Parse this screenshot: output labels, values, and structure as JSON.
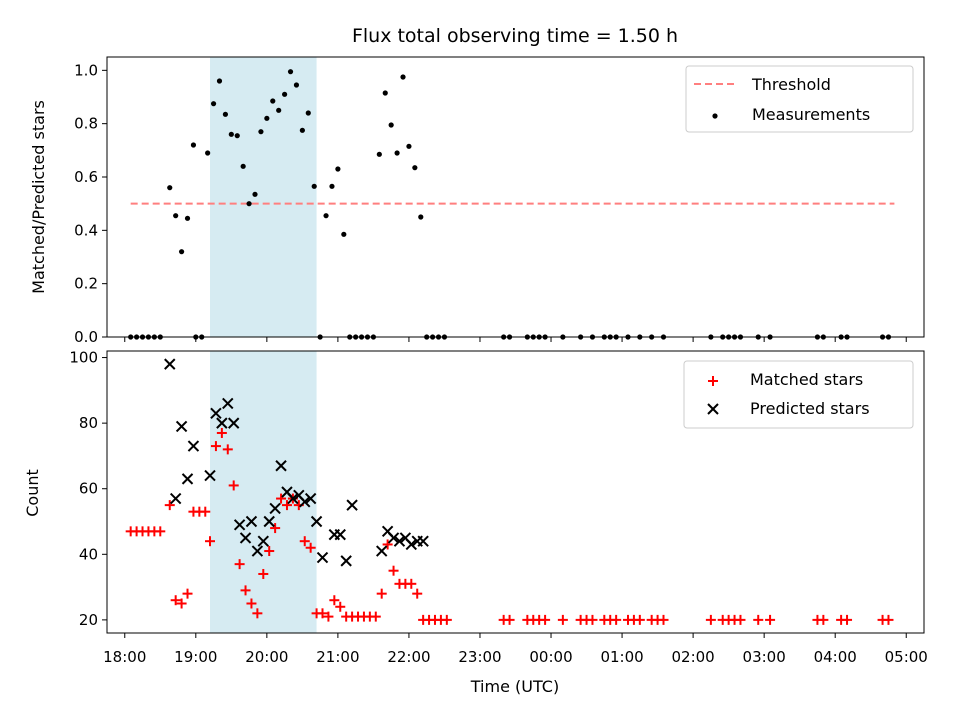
{
  "chart_data": [
    {
      "type": "scatter",
      "title": "Flux total observing time = 1.50 h",
      "xlabel": "",
      "ylabel": "Matched/Predicted stars",
      "xlim": [
        "17:45",
        "05:15"
      ],
      "ylim": [
        0,
        1.05
      ],
      "yticks": [
        "0.0",
        "0.2",
        "0.4",
        "0.6",
        "0.8",
        "1.0"
      ],
      "shaded_interval": [
        "19:12",
        "20:42"
      ],
      "legend_position": "top-right",
      "threshold": {
        "name": "Threshold",
        "value": 0.5,
        "x_range": [
          "18:05",
          "04:50"
        ],
        "color": "#ff7f7f"
      },
      "series": [
        {
          "name": "Measurements",
          "color": "#000000",
          "points": [
            [
              "18:05",
              0
            ],
            [
              "18:10",
              0
            ],
            [
              "18:15",
              0
            ],
            [
              "18:20",
              0
            ],
            [
              "18:25",
              0
            ],
            [
              "18:30",
              0
            ],
            [
              "18:38",
              0.56
            ],
            [
              "18:43",
              0.455
            ],
            [
              "18:48",
              0.32
            ],
            [
              "18:53",
              0.445
            ],
            [
              "18:58",
              0.72
            ],
            [
              "19:00",
              0
            ],
            [
              "19:05",
              0
            ],
            [
              "19:10",
              0.69
            ],
            [
              "19:15",
              0.875
            ],
            [
              "19:20",
              0.96
            ],
            [
              "19:25",
              0.835
            ],
            [
              "19:30",
              0.76
            ],
            [
              "19:35",
              0.755
            ],
            [
              "19:40",
              0.64
            ],
            [
              "19:45",
              0.5
            ],
            [
              "19:50",
              0.535
            ],
            [
              "19:55",
              0.77
            ],
            [
              "20:00",
              0.82
            ],
            [
              "20:05",
              0.885
            ],
            [
              "20:10",
              0.85
            ],
            [
              "20:15",
              0.91
            ],
            [
              "20:20",
              0.995
            ],
            [
              "20:25",
              0.945
            ],
            [
              "20:30",
              0.775
            ],
            [
              "20:35",
              0.84
            ],
            [
              "20:40",
              0.565
            ],
            [
              "20:45",
              0
            ],
            [
              "20:50",
              0.455
            ],
            [
              "20:55",
              0.565
            ],
            [
              "21:00",
              0.63
            ],
            [
              "21:05",
              0.385
            ],
            [
              "21:10",
              0
            ],
            [
              "21:15",
              0
            ],
            [
              "21:20",
              0
            ],
            [
              "21:25",
              0
            ],
            [
              "21:30",
              0
            ],
            [
              "21:35",
              0.685
            ],
            [
              "21:40",
              0.915
            ],
            [
              "21:45",
              0.795
            ],
            [
              "21:50",
              0.69
            ],
            [
              "21:55",
              0.975
            ],
            [
              "22:00",
              0.715
            ],
            [
              "22:05",
              0.635
            ],
            [
              "22:10",
              0.45
            ],
            [
              "22:15",
              0
            ],
            [
              "22:20",
              0
            ],
            [
              "22:25",
              0
            ],
            [
              "22:30",
              0
            ],
            [
              "23:20",
              0
            ],
            [
              "23:25",
              0
            ],
            [
              "23:40",
              0
            ],
            [
              "23:45",
              0
            ],
            [
              "23:50",
              0
            ],
            [
              "23:55",
              0
            ],
            [
              "00:10",
              0
            ],
            [
              "00:25",
              0
            ],
            [
              "00:35",
              0
            ],
            [
              "00:45",
              0
            ],
            [
              "00:50",
              0
            ],
            [
              "00:55",
              0
            ],
            [
              "01:05",
              0
            ],
            [
              "01:15",
              0
            ],
            [
              "01:25",
              0
            ],
            [
              "01:35",
              0
            ],
            [
              "02:15",
              0
            ],
            [
              "02:25",
              0
            ],
            [
              "02:30",
              0
            ],
            [
              "02:35",
              0
            ],
            [
              "02:40",
              0
            ],
            [
              "02:55",
              0
            ],
            [
              "03:05",
              0
            ],
            [
              "03:45",
              0
            ],
            [
              "03:50",
              0
            ],
            [
              "04:05",
              0
            ],
            [
              "04:10",
              0
            ],
            [
              "04:40",
              0
            ],
            [
              "04:45",
              0
            ]
          ]
        }
      ]
    },
    {
      "type": "scatter",
      "title": "",
      "xlabel": "Time (UTC)",
      "ylabel": "Count",
      "xlim": [
        "17:45",
        "05:15"
      ],
      "ylim": [
        16,
        102
      ],
      "yticks": [
        "20",
        "40",
        "60",
        "80",
        "100"
      ],
      "xticks": [
        "18:00",
        "19:00",
        "20:00",
        "21:00",
        "22:00",
        "23:00",
        "00:00",
        "01:00",
        "02:00",
        "03:00",
        "04:00",
        "05:00"
      ],
      "shaded_interval": [
        "19:12",
        "20:42"
      ],
      "legend_position": "top-right",
      "series": [
        {
          "name": "Matched stars",
          "color": "#ff0000",
          "marker": "+",
          "points": [
            [
              "18:05",
              47
            ],
            [
              "18:10",
              47
            ],
            [
              "18:15",
              47
            ],
            [
              "18:20",
              47
            ],
            [
              "18:25",
              47
            ],
            [
              "18:30",
              47
            ],
            [
              "18:38",
              55
            ],
            [
              "18:43",
              26
            ],
            [
              "18:48",
              25
            ],
            [
              "18:53",
              28
            ],
            [
              "18:58",
              53
            ],
            [
              "19:03",
              53
            ],
            [
              "19:08",
              53
            ],
            [
              "19:12",
              44
            ],
            [
              "19:17",
              73
            ],
            [
              "19:22",
              77
            ],
            [
              "19:27",
              72
            ],
            [
              "19:32",
              61
            ],
            [
              "19:37",
              37
            ],
            [
              "19:42",
              29
            ],
            [
              "19:47",
              25
            ],
            [
              "19:52",
              22
            ],
            [
              "19:57",
              34
            ],
            [
              "20:02",
              41
            ],
            [
              "20:07",
              48
            ],
            [
              "20:12",
              57
            ],
            [
              "20:17",
              55
            ],
            [
              "20:22",
              57
            ],
            [
              "20:27",
              55
            ],
            [
              "20:32",
              44
            ],
            [
              "20:37",
              42
            ],
            [
              "20:42",
              22
            ],
            [
              "20:47",
              22
            ],
            [
              "20:52",
              21
            ],
            [
              "20:57",
              26
            ],
            [
              "21:02",
              24
            ],
            [
              "21:07",
              21
            ],
            [
              "21:12",
              21
            ],
            [
              "21:17",
              21
            ],
            [
              "21:22",
              21
            ],
            [
              "21:27",
              21
            ],
            [
              "21:32",
              21
            ],
            [
              "21:37",
              28
            ],
            [
              "21:42",
              43
            ],
            [
              "21:47",
              35
            ],
            [
              "21:52",
              31
            ],
            [
              "21:57",
              31
            ],
            [
              "22:02",
              31
            ],
            [
              "22:07",
              28
            ],
            [
              "22:12",
              20
            ],
            [
              "22:17",
              20
            ],
            [
              "22:22",
              20
            ],
            [
              "22:27",
              20
            ],
            [
              "22:32",
              20
            ],
            [
              "23:20",
              20
            ],
            [
              "23:25",
              20
            ],
            [
              "23:40",
              20
            ],
            [
              "23:45",
              20
            ],
            [
              "23:50",
              20
            ],
            [
              "23:55",
              20
            ],
            [
              "00:10",
              20
            ],
            [
              "00:25",
              20
            ],
            [
              "00:30",
              20
            ],
            [
              "00:35",
              20
            ],
            [
              "00:45",
              20
            ],
            [
              "00:50",
              20
            ],
            [
              "00:55",
              20
            ],
            [
              "01:05",
              20
            ],
            [
              "01:10",
              20
            ],
            [
              "01:15",
              20
            ],
            [
              "01:25",
              20
            ],
            [
              "01:30",
              20
            ],
            [
              "01:35",
              20
            ],
            [
              "02:15",
              20
            ],
            [
              "02:25",
              20
            ],
            [
              "02:30",
              20
            ],
            [
              "02:35",
              20
            ],
            [
              "02:40",
              20
            ],
            [
              "02:55",
              20
            ],
            [
              "03:05",
              20
            ],
            [
              "03:45",
              20
            ],
            [
              "03:50",
              20
            ],
            [
              "04:05",
              20
            ],
            [
              "04:10",
              20
            ],
            [
              "04:40",
              20
            ],
            [
              "04:45",
              20
            ]
          ]
        },
        {
          "name": "Predicted stars",
          "color": "#000000",
          "marker": "x",
          "points": [
            [
              "18:38",
              98
            ],
            [
              "18:43",
              57
            ],
            [
              "18:48",
              79
            ],
            [
              "18:53",
              63
            ],
            [
              "18:58",
              73
            ],
            [
              "19:12",
              64
            ],
            [
              "19:17",
              83
            ],
            [
              "19:22",
              80
            ],
            [
              "19:27",
              86
            ],
            [
              "19:32",
              80
            ],
            [
              "19:37",
              49
            ],
            [
              "19:42",
              45
            ],
            [
              "19:47",
              50
            ],
            [
              "19:52",
              41
            ],
            [
              "19:57",
              44
            ],
            [
              "20:02",
              50
            ],
            [
              "20:07",
              54
            ],
            [
              "20:12",
              67
            ],
            [
              "20:17",
              59
            ],
            [
              "20:22",
              57
            ],
            [
              "20:27",
              58
            ],
            [
              "20:32",
              56
            ],
            [
              "20:37",
              57
            ],
            [
              "20:42",
              50
            ],
            [
              "20:47",
              39
            ],
            [
              "20:57",
              46
            ],
            [
              "21:02",
              46
            ],
            [
              "21:07",
              38
            ],
            [
              "21:12",
              55
            ],
            [
              "21:37",
              41
            ],
            [
              "21:42",
              47
            ],
            [
              "21:47",
              45
            ],
            [
              "21:52",
              44
            ],
            [
              "21:57",
              45
            ],
            [
              "22:02",
              43
            ],
            [
              "22:07",
              44
            ],
            [
              "22:12",
              44
            ]
          ]
        }
      ]
    }
  ]
}
